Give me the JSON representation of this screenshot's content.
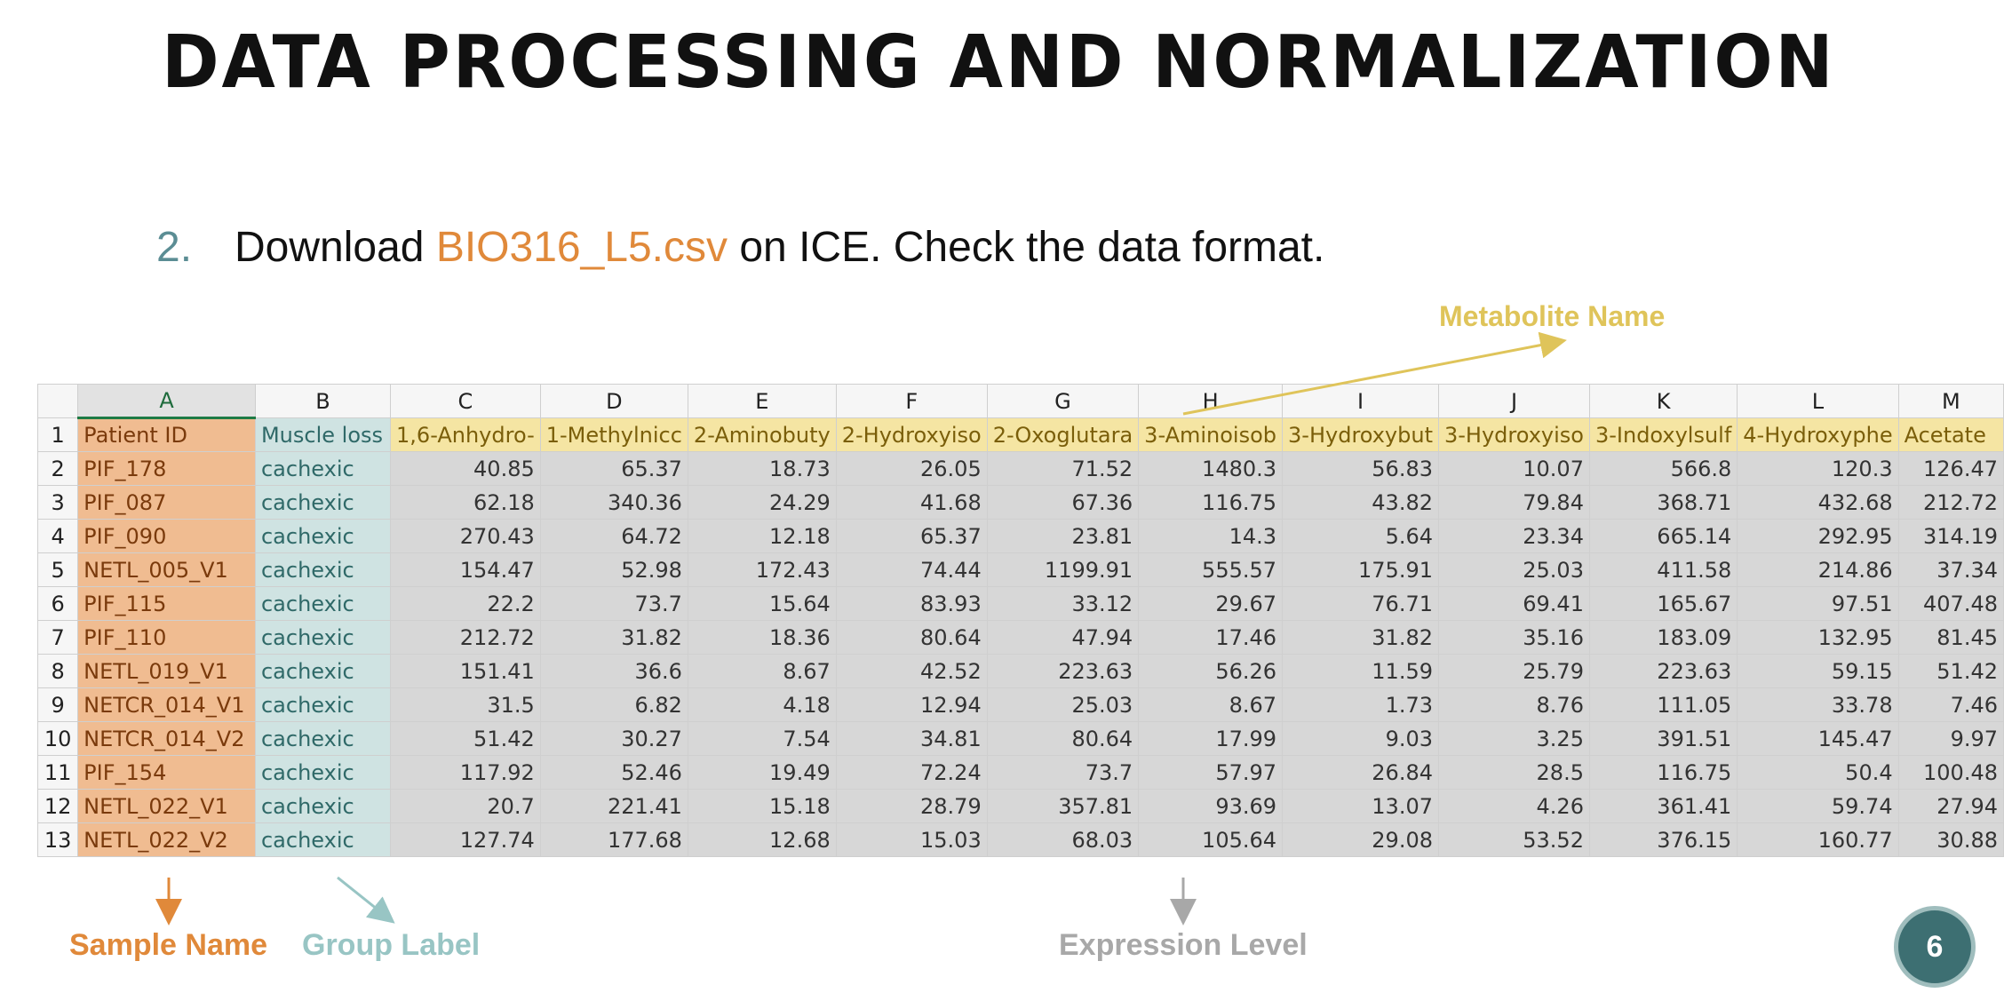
{
  "title": "DATA PROCESSING AND NORMALIZATION",
  "step": {
    "number": "2.",
    "prefix": "Download ",
    "filename": "BIO316_L5.csv",
    "suffix": " on ICE. Check the data format."
  },
  "annotations": {
    "metabolite": "Metabolite Name",
    "sample": "Sample Name",
    "group": "Group Label",
    "expression": "Expression Level"
  },
  "page_number": "6",
  "sheet": {
    "columns": [
      "A",
      "B",
      "C",
      "D",
      "E",
      "F",
      "G",
      "H",
      "I",
      "J",
      "K",
      "L",
      "M"
    ],
    "header": [
      "Patient ID",
      "Muscle loss",
      "1,6-Anhydro-",
      "1-Methylnicc",
      "2-Aminobuty",
      "2-Hydroxyiso",
      "2-Oxoglutara",
      "3-Aminoisob",
      "3-Hydroxybut",
      "3-Hydroxyiso",
      "3-Indoxylsulf",
      "4-Hydroxyphe",
      "Acetate"
    ],
    "rows": [
      {
        "n": "2",
        "id": "PIF_178",
        "group": "cachexic",
        "values": [
          "40.85",
          "65.37",
          "18.73",
          "26.05",
          "71.52",
          "1480.3",
          "56.83",
          "10.07",
          "566.8",
          "120.3",
          "126.47"
        ]
      },
      {
        "n": "3",
        "id": "PIF_087",
        "group": "cachexic",
        "values": [
          "62.18",
          "340.36",
          "24.29",
          "41.68",
          "67.36",
          "116.75",
          "43.82",
          "79.84",
          "368.71",
          "432.68",
          "212.72"
        ]
      },
      {
        "n": "4",
        "id": "PIF_090",
        "group": "cachexic",
        "values": [
          "270.43",
          "64.72",
          "12.18",
          "65.37",
          "23.81",
          "14.3",
          "5.64",
          "23.34",
          "665.14",
          "292.95",
          "314.19"
        ]
      },
      {
        "n": "5",
        "id": "NETL_005_V1",
        "group": "cachexic",
        "values": [
          "154.47",
          "52.98",
          "172.43",
          "74.44",
          "1199.91",
          "555.57",
          "175.91",
          "25.03",
          "411.58",
          "214.86",
          "37.34"
        ]
      },
      {
        "n": "6",
        "id": "PIF_115",
        "group": "cachexic",
        "values": [
          "22.2",
          "73.7",
          "15.64",
          "83.93",
          "33.12",
          "29.67",
          "76.71",
          "69.41",
          "165.67",
          "97.51",
          "407.48"
        ]
      },
      {
        "n": "7",
        "id": "PIF_110",
        "group": "cachexic",
        "values": [
          "212.72",
          "31.82",
          "18.36",
          "80.64",
          "47.94",
          "17.46",
          "31.82",
          "35.16",
          "183.09",
          "132.95",
          "81.45"
        ]
      },
      {
        "n": "8",
        "id": "NETL_019_V1",
        "group": "cachexic",
        "values": [
          "151.41",
          "36.6",
          "8.67",
          "42.52",
          "223.63",
          "56.26",
          "11.59",
          "25.79",
          "223.63",
          "59.15",
          "51.42"
        ]
      },
      {
        "n": "9",
        "id": "NETCR_014_V1",
        "group": "cachexic",
        "values": [
          "31.5",
          "6.82",
          "4.18",
          "12.94",
          "25.03",
          "8.67",
          "1.73",
          "8.76",
          "111.05",
          "33.78",
          "7.46"
        ]
      },
      {
        "n": "10",
        "id": "NETCR_014_V2",
        "group": "cachexic",
        "values": [
          "51.42",
          "30.27",
          "7.54",
          "34.81",
          "80.64",
          "17.99",
          "9.03",
          "3.25",
          "391.51",
          "145.47",
          "9.97"
        ]
      },
      {
        "n": "11",
        "id": "PIF_154",
        "group": "cachexic",
        "values": [
          "117.92",
          "52.46",
          "19.49",
          "72.24",
          "73.7",
          "57.97",
          "26.84",
          "28.5",
          "116.75",
          "50.4",
          "100.48"
        ]
      },
      {
        "n": "12",
        "id": "NETL_022_V1",
        "group": "cachexic",
        "values": [
          "20.7",
          "221.41",
          "15.18",
          "28.79",
          "357.81",
          "93.69",
          "13.07",
          "4.26",
          "361.41",
          "59.74",
          "27.94"
        ]
      },
      {
        "n": "13",
        "id": "NETL_022_V2",
        "group": "cachexic",
        "values": [
          "127.74",
          "177.68",
          "12.68",
          "15.03",
          "68.03",
          "105.64",
          "29.08",
          "53.52",
          "376.15",
          "160.77",
          "30.88"
        ]
      }
    ]
  },
  "colors": {
    "sample": "#e0893a",
    "group": "#98c5c4",
    "metabolite": "#dfc45a",
    "expression": "#a8a8a8",
    "step_number": "#5b8d94"
  }
}
